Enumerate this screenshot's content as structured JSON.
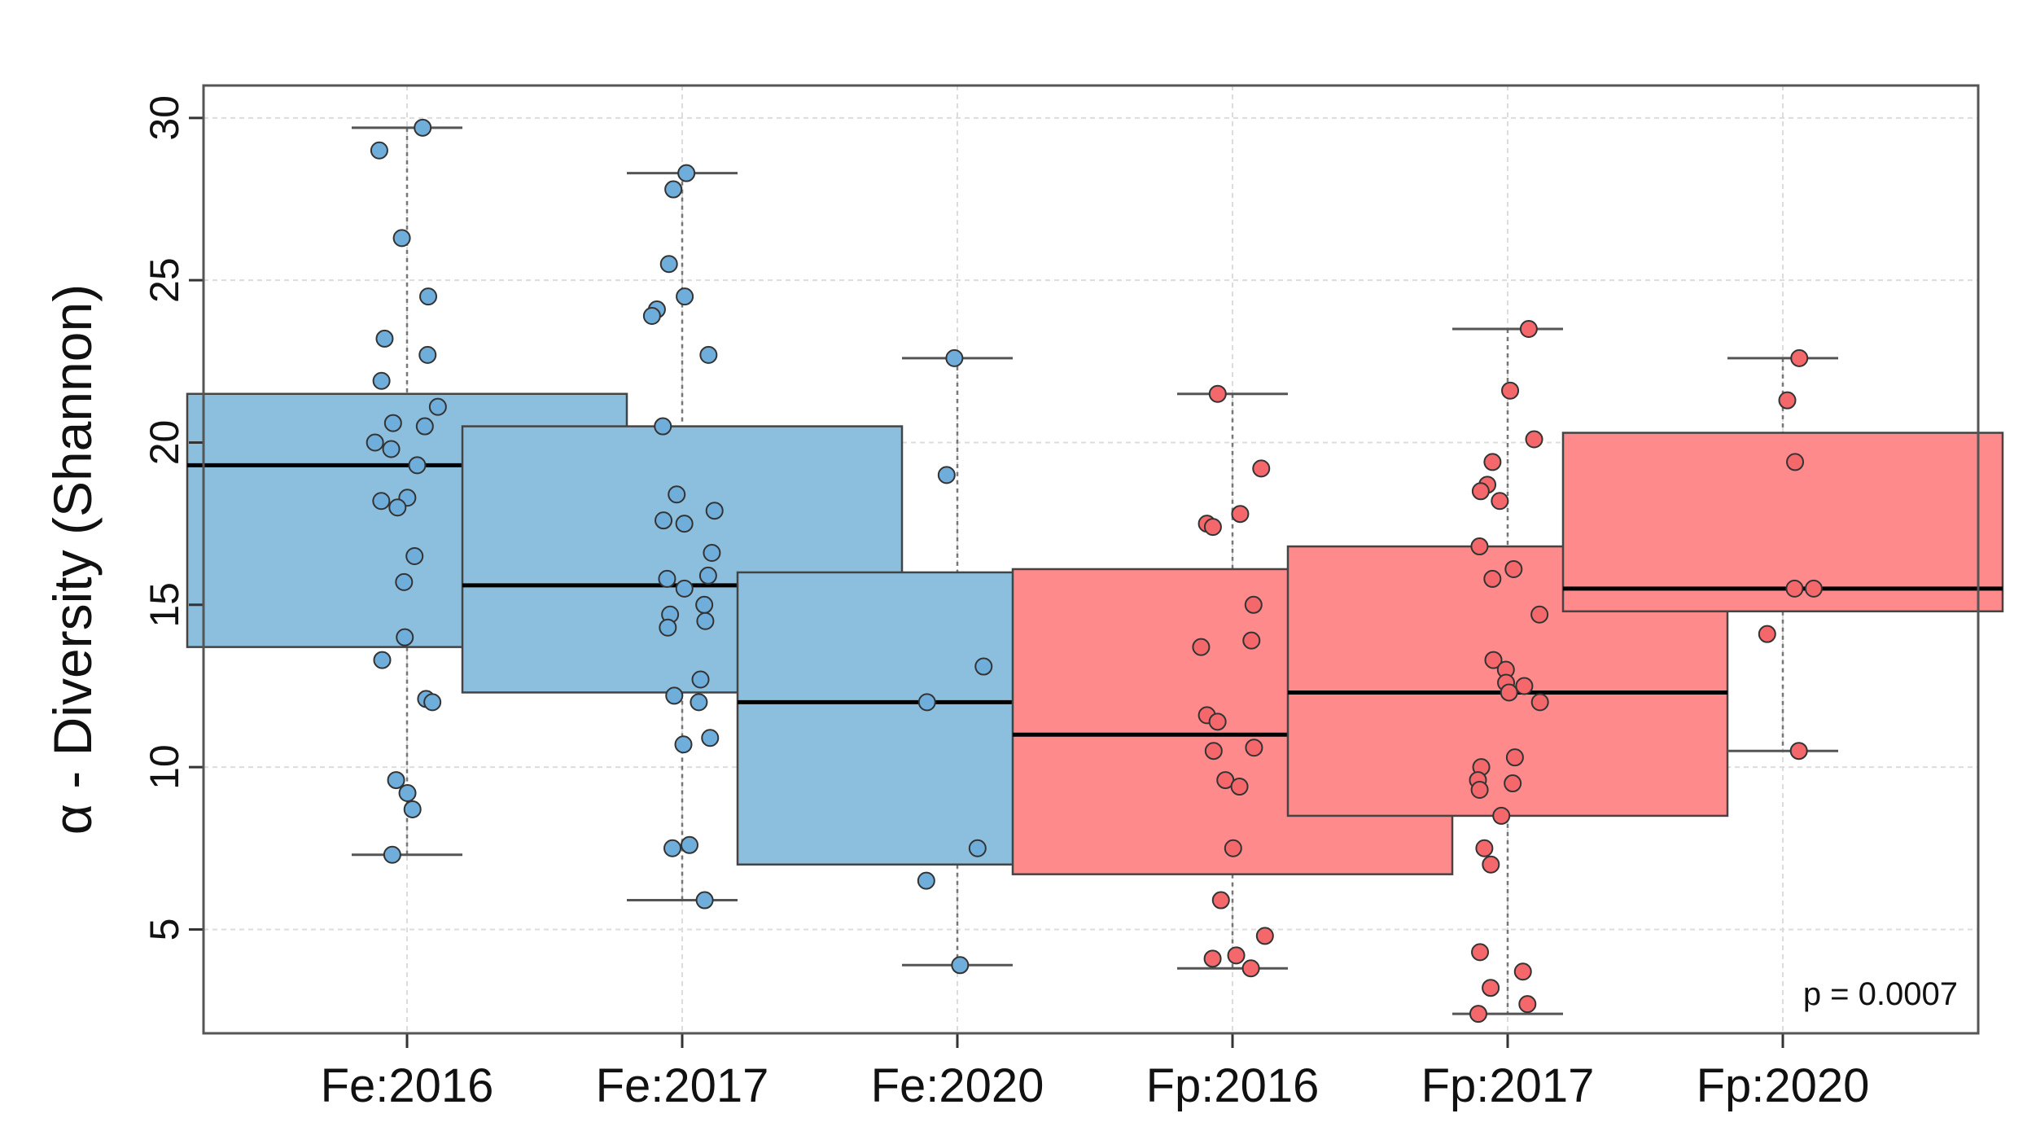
{
  "chart_data": {
    "type": "box",
    "title": "",
    "xlabel": "",
    "ylabel": "α - Diversity (Shannon)",
    "ylim": [
      1.8,
      31.0
    ],
    "yticks": [
      5,
      10,
      15,
      20,
      25,
      30
    ],
    "grid": true,
    "annotation": "p =  0.0007",
    "categories": [
      "Fe:2016",
      "Fe:2017",
      "Fe:2020",
      "Fp:2016",
      "Fp:2017",
      "Fp:2020"
    ],
    "colors": {
      "Fe": {
        "box": "#8cbfdd",
        "point": "#6faedb"
      },
      "Fp": {
        "box": "#fe8a8b",
        "point": "#f4676b"
      }
    },
    "groups": [
      {
        "name": "Fe:2016",
        "species": "Fe",
        "min": 7.3,
        "q1": 13.7,
        "median": 19.3,
        "q3": 21.5,
        "max": 29.7,
        "points": [
          29.7,
          29.0,
          26.3,
          24.5,
          23.2,
          22.7,
          21.9,
          21.1,
          20.6,
          20.5,
          20.0,
          19.8,
          19.3,
          18.3,
          18.2,
          18.0,
          16.5,
          15.7,
          14.0,
          13.3,
          12.1,
          12.0,
          9.6,
          9.2,
          8.7,
          7.3
        ]
      },
      {
        "name": "Fe:2017",
        "species": "Fe",
        "min": 5.9,
        "q1": 12.3,
        "median": 15.6,
        "q3": 20.5,
        "max": 28.3,
        "points": [
          28.3,
          27.8,
          25.5,
          24.5,
          24.1,
          23.9,
          22.7,
          20.5,
          18.4,
          17.9,
          17.6,
          17.5,
          16.6,
          15.9,
          15.8,
          15.5,
          15.0,
          14.7,
          14.5,
          14.3,
          12.7,
          12.2,
          12.0,
          10.9,
          10.7,
          7.6,
          7.5,
          5.9
        ]
      },
      {
        "name": "Fe:2020",
        "species": "Fe",
        "min": 3.9,
        "q1": 7.0,
        "median": 12.0,
        "q3": 16.0,
        "max": 22.6,
        "points": [
          22.6,
          19.0,
          13.1,
          12.0,
          7.5,
          6.5,
          3.9
        ]
      },
      {
        "name": "Fp:2016",
        "species": "Fp",
        "min": 3.8,
        "q1": 6.7,
        "median": 11.0,
        "q3": 16.1,
        "max": 21.5,
        "points": [
          21.5,
          19.2,
          17.8,
          17.5,
          17.4,
          15.0,
          13.9,
          13.7,
          11.6,
          11.4,
          10.6,
          10.5,
          9.6,
          9.4,
          7.5,
          5.9,
          4.8,
          4.2,
          4.1,
          3.8
        ]
      },
      {
        "name": "Fp:2017",
        "species": "Fp",
        "min": 2.4,
        "q1": 8.5,
        "median": 12.3,
        "q3": 16.8,
        "max": 23.5,
        "points": [
          23.5,
          21.6,
          20.1,
          19.4,
          18.7,
          18.5,
          18.2,
          16.8,
          16.1,
          15.8,
          14.7,
          13.3,
          13.0,
          12.6,
          12.5,
          12.3,
          12.0,
          10.3,
          10.0,
          9.6,
          9.5,
          9.3,
          8.5,
          7.5,
          7.0,
          4.3,
          3.7,
          3.2,
          2.7,
          2.4
        ]
      },
      {
        "name": "Fp:2020",
        "species": "Fp",
        "min": 10.5,
        "q1": 14.8,
        "median": 15.5,
        "q3": 20.3,
        "max": 22.6,
        "points": [
          22.6,
          21.3,
          19.4,
          15.5,
          15.5,
          14.1,
          10.5
        ]
      }
    ]
  }
}
